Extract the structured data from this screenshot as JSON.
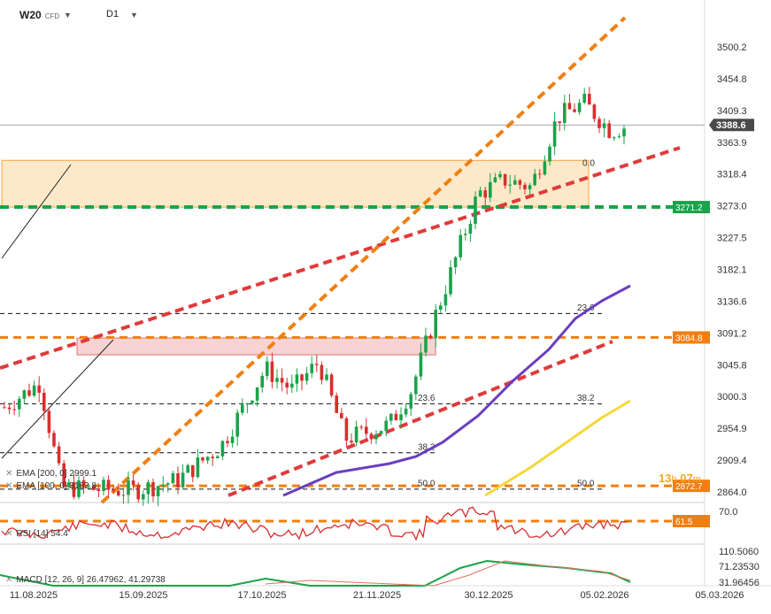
{
  "header": {
    "symbol": "W20",
    "type": "CFD",
    "interval": "D1"
  },
  "timer": {
    "hours": "13",
    "h": "h",
    "minutes": "07",
    "m": "m"
  },
  "indicators": {
    "ema200": "EMA [200, 0] 2999.1",
    "ema100": "EMA [100, 0] 3162.8",
    "rsi": "RSI [14] 54.4",
    "macd": "MACD [12, 26, 9] 26.47962, 41.29738"
  },
  "colors": {
    "up": "#1aa34a",
    "down": "#d92e2e",
    "orange": "#f07f12",
    "red": "#e03a3a",
    "ema200": "#f4d83a",
    "ema100": "#6a3ec0",
    "zone": "#fde9c9",
    "zone_border": "#f3a23a",
    "pink": "#f8d3d3",
    "green_tag": "#1aa34a",
    "price_tag": "#4a4a4a"
  },
  "chart_data": {
    "type": "candlestick",
    "price_axis": {
      "ticks": [
        3500.2,
        3454.8,
        3409.3,
        3363.9,
        3318.4,
        3273.0,
        3227.5,
        3182.1,
        3136.6,
        3091.2,
        3045.8,
        3000.3,
        2954.9,
        2909.4,
        2864.0
      ]
    },
    "ylim": [
      2864.0,
      3545.0
    ],
    "date_axis": [
      "11.08.2025",
      "15.09.2025",
      "17.10.2025",
      "21.11.2025",
      "30.12.2025",
      "05.02.2026",
      "05.03.2026"
    ],
    "last_price": "3388.6",
    "levels": {
      "green_dashed": "3271.2",
      "orange_dashed": "3084.8",
      "orange_bottom": "2872.7",
      "orange_bottom_value": 2872.7
    },
    "fib_labels": [
      "0.0",
      "23.6",
      "23.6",
      "38.2",
      "38.2",
      "50.0",
      "50.0"
    ],
    "rsi": {
      "ticks": [
        "70.0"
      ],
      "level": "61.5",
      "value": 54.4
    },
    "macd": {
      "ticks": [
        "110.5060",
        "71.23530",
        "31.96456"
      ],
      "macd": 26.47962,
      "signal": 41.29738
    }
  }
}
